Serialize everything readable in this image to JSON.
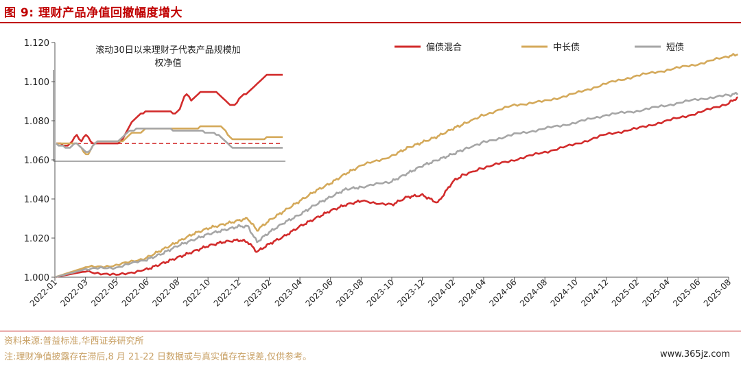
{
  "figure": {
    "label": "图 9:",
    "title": "理财产品净值回撤幅度增大"
  },
  "footer": {
    "source": "资料来源:普益标准,华西证券研究所",
    "note": "注:理财净值披露存在滞后,8 月 21-22 日数据或与真实值存在误差,仅供参考。",
    "watermark": "www.365jz.com"
  },
  "chart_data": {
    "type": "line",
    "title": "理财产品净值回撤幅度增大",
    "xlabel": "",
    "ylabel": "",
    "ylim": [
      1.0,
      1.12
    ],
    "yticks": [
      "1.000",
      "1.020",
      "1.040",
      "1.060",
      "1.080",
      "1.100",
      "1.120"
    ],
    "x_ticks": [
      "2022-01",
      "2022-03",
      "2022-05",
      "2022-06",
      "2022-08",
      "2022-10",
      "2022-12",
      "2023-02",
      "2023-04",
      "2023-06",
      "2023-08",
      "2023-10",
      "2023-12",
      "2024-02",
      "2024-04",
      "2024-06",
      "2024-08",
      "2024-10",
      "2024-12",
      "2025-02",
      "2025-04",
      "2025-06",
      "2025-08"
    ],
    "x": [
      0,
      1,
      2,
      3,
      3.5,
      4,
      4.5,
      5,
      5.5,
      6,
      6.3,
      6.6,
      7,
      7.5,
      8,
      8.5,
      9,
      9.5,
      10,
      11,
      11.5,
      12,
      12.5,
      13,
      13.3,
      14,
      15,
      16,
      17,
      18,
      19,
      20,
      21,
      22,
      22.3
    ],
    "series": [
      {
        "name": "偏债混合",
        "color": "#d22b2b",
        "values": [
          1.0,
          1.003,
          1.001,
          1.004,
          1.007,
          1.01,
          1.013,
          1.016,
          1.018,
          1.019,
          1.018,
          1.013,
          1.017,
          1.021,
          1.026,
          1.03,
          1.034,
          1.037,
          1.039,
          1.037,
          1.041,
          1.042,
          1.038,
          1.049,
          1.052,
          1.056,
          1.06,
          1.064,
          1.068,
          1.073,
          1.076,
          1.08,
          1.084,
          1.089,
          1.092
        ]
      },
      {
        "name": "中长债",
        "color": "#d4a95a",
        "values": [
          1.0,
          1.005,
          1.006,
          1.01,
          1.014,
          1.018,
          1.022,
          1.025,
          1.027,
          1.029,
          1.03,
          1.024,
          1.029,
          1.034,
          1.039,
          1.044,
          1.048,
          1.053,
          1.057,
          1.062,
          1.066,
          1.069,
          1.072,
          1.076,
          1.078,
          1.083,
          1.088,
          1.09,
          1.094,
          1.099,
          1.103,
          1.106,
          1.109,
          1.113,
          1.114
        ]
      },
      {
        "name": "短债",
        "color": "#a6a6a6",
        "values": [
          1.0,
          1.004,
          1.005,
          1.009,
          1.012,
          1.016,
          1.019,
          1.022,
          1.024,
          1.026,
          1.026,
          1.018,
          1.023,
          1.028,
          1.032,
          1.037,
          1.041,
          1.045,
          1.046,
          1.049,
          1.053,
          1.057,
          1.06,
          1.063,
          1.065,
          1.069,
          1.073,
          1.076,
          1.079,
          1.083,
          1.085,
          1.088,
          1.091,
          1.093,
          1.094
        ]
      }
    ],
    "legend": [
      "偏债混合",
      "中长债",
      "短债"
    ],
    "inset": {
      "title_line1": "滚动30日以来理财子代表产品规模加",
      "title_line2": "权净值",
      "x": [
        0,
        1,
        2,
        3,
        4,
        5,
        6,
        7,
        8,
        9,
        10,
        11,
        12,
        13,
        14,
        15,
        16,
        17,
        18,
        19,
        20,
        21,
        22,
        23,
        24,
        25,
        26,
        27,
        28,
        29,
        30,
        31,
        32,
        33,
        34,
        35,
        36,
        37,
        38,
        39,
        40,
        41,
        42,
        43,
        44,
        45,
        46,
        47,
        48,
        49,
        50,
        51,
        52,
        53,
        54,
        55,
        56,
        57,
        58,
        59,
        60,
        61,
        62,
        63,
        64,
        65,
        66,
        67,
        68,
        69,
        70,
        71,
        72,
        73,
        74,
        75,
        76,
        77,
        78,
        79,
        80,
        81,
        82,
        83,
        84,
        85,
        86,
        87,
        88,
        89,
        90,
        91,
        92,
        93,
        94,
        95,
        96,
        97,
        98,
        99
      ],
      "ylim": [
        1.063,
        1.103
      ],
      "baseline": 1.07,
      "series": [
        {
          "name": "偏债混合",
          "color": "#d22b2b",
          "values": [
            1.07,
            1.07,
            1.07,
            1.069,
            1.069,
            1.069,
            1.07,
            1.071,
            1.073,
            1.074,
            1.072,
            1.071,
            1.073,
            1.074,
            1.073,
            1.071,
            1.07,
            1.07,
            1.07,
            1.07,
            1.07,
            1.07,
            1.07,
            1.07,
            1.07,
            1.07,
            1.07,
            1.07,
            1.071,
            1.072,
            1.074,
            1.076,
            1.078,
            1.08,
            1.081,
            1.082,
            1.083,
            1.084,
            1.084,
            1.085,
            1.085,
            1.085,
            1.085,
            1.085,
            1.085,
            1.085,
            1.085,
            1.085,
            1.085,
            1.085,
            1.085,
            1.084,
            1.084,
            1.085,
            1.086,
            1.089,
            1.092,
            1.093,
            1.092,
            1.09,
            1.091,
            1.092,
            1.093,
            1.094,
            1.094,
            1.094,
            1.094,
            1.094,
            1.094,
            1.094,
            1.094,
            1.093,
            1.092,
            1.091,
            1.09,
            1.089,
            1.088,
            1.088,
            1.088,
            1.089,
            1.091,
            1.092,
            1.093,
            1.093,
            1.094,
            1.095,
            1.096,
            1.097,
            1.098,
            1.099,
            1.1,
            1.101,
            1.102,
            1.102,
            1.102,
            1.102,
            1.102,
            1.102,
            1.102,
            1.102
          ]
        },
        {
          "name": "中长债",
          "color": "#d4a95a",
          "values": [
            1.07,
            1.07,
            1.07,
            1.07,
            1.07,
            1.07,
            1.07,
            1.07,
            1.07,
            1.07,
            1.069,
            1.068,
            1.066,
            1.065,
            1.065,
            1.067,
            1.069,
            1.07,
            1.071,
            1.071,
            1.071,
            1.071,
            1.071,
            1.071,
            1.071,
            1.071,
            1.071,
            1.071,
            1.071,
            1.071,
            1.072,
            1.073,
            1.074,
            1.075,
            1.075,
            1.075,
            1.075,
            1.075,
            1.076,
            1.077,
            1.077,
            1.077,
            1.077,
            1.077,
            1.077,
            1.077,
            1.077,
            1.077,
            1.077,
            1.077,
            1.077,
            1.077,
            1.077,
            1.077,
            1.077,
            1.077,
            1.077,
            1.077,
            1.077,
            1.077,
            1.077,
            1.077,
            1.077,
            1.078,
            1.078,
            1.078,
            1.078,
            1.078,
            1.078,
            1.078,
            1.078,
            1.078,
            1.078,
            1.077,
            1.076,
            1.074,
            1.073,
            1.072,
            1.072,
            1.072,
            1.072,
            1.072,
            1.072,
            1.072,
            1.072,
            1.072,
            1.072,
            1.072,
            1.072,
            1.072,
            1.072,
            1.072,
            1.073,
            1.073,
            1.073,
            1.073,
            1.073,
            1.073,
            1.073,
            1.073
          ]
        },
        {
          "name": "短债",
          "color": "#a6a6a6",
          "values": [
            1.07,
            1.069,
            1.069,
            1.069,
            1.068,
            1.068,
            1.068,
            1.069,
            1.07,
            1.07,
            1.069,
            1.068,
            1.067,
            1.066,
            1.066,
            1.067,
            1.069,
            1.07,
            1.071,
            1.071,
            1.071,
            1.071,
            1.071,
            1.071,
            1.071,
            1.071,
            1.071,
            1.071,
            1.072,
            1.073,
            1.074,
            1.075,
            1.076,
            1.076,
            1.076,
            1.077,
            1.077,
            1.077,
            1.077,
            1.077,
            1.077,
            1.077,
            1.077,
            1.077,
            1.077,
            1.077,
            1.077,
            1.077,
            1.077,
            1.077,
            1.077,
            1.076,
            1.076,
            1.076,
            1.076,
            1.076,
            1.076,
            1.076,
            1.076,
            1.076,
            1.076,
            1.076,
            1.076,
            1.076,
            1.076,
            1.075,
            1.075,
            1.075,
            1.075,
            1.075,
            1.074,
            1.074,
            1.073,
            1.072,
            1.071,
            1.07,
            1.069,
            1.068,
            1.068,
            1.068,
            1.068,
            1.068,
            1.068,
            1.068,
            1.068,
            1.068,
            1.068,
            1.068,
            1.068,
            1.068,
            1.068,
            1.068,
            1.068,
            1.068,
            1.068,
            1.068,
            1.068,
            1.068,
            1.068,
            1.068
          ]
        }
      ]
    }
  }
}
